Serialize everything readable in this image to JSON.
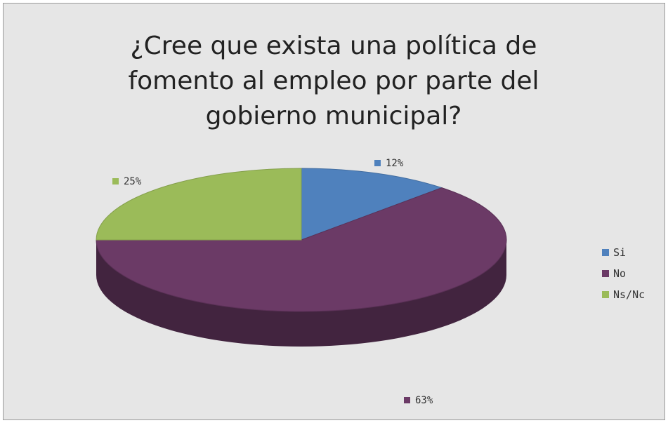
{
  "chart_data": {
    "type": "pie",
    "title": "¿Cree que exista una política de\nfomento al empleo por parte del\ngobierno municipal?",
    "slices": [
      {
        "name": "Si",
        "value": 12,
        "label": "12%",
        "color": "#4f81bd"
      },
      {
        "name": "No",
        "value": 63,
        "label": "63%",
        "color": "#6b3a66"
      },
      {
        "name": "Ns/Nc",
        "value": 25,
        "label": "25%",
        "color": "#9bbb59"
      }
    ],
    "legend_position": "right",
    "style": "3d"
  }
}
